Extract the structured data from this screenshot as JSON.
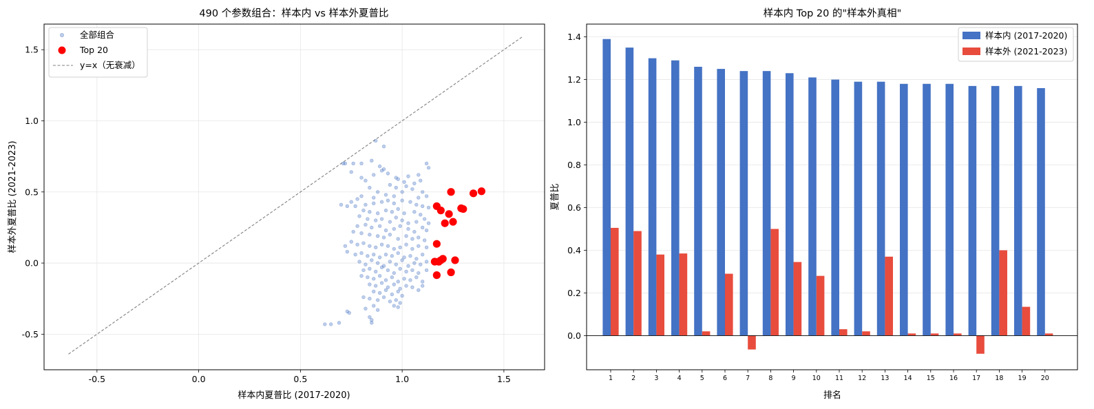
{
  "chart_data": [
    {
      "type": "scatter",
      "title": "490 个参数组合：样本内 vs 样本外夏普比",
      "xlabel": "样本内夏普比 (2017-2020)",
      "ylabel": "样本外夏普比 (2021-2023)",
      "xlim": [
        -0.76,
        1.7
      ],
      "ylim": [
        -0.75,
        1.68
      ],
      "xticks": [
        -0.5,
        0.0,
        0.5,
        1.0,
        1.5
      ],
      "xtick_labels": [
        "-0.5",
        "0.0",
        "0.5",
        "1.0",
        "1.5"
      ],
      "yticks": [
        -0.5,
        0.0,
        0.5,
        1.0,
        1.5
      ],
      "ytick_labels": [
        "-0.5",
        "0.0",
        "0.5",
        "1.0",
        "1.5"
      ],
      "grid": true,
      "legend_position": "top-left",
      "legend": [
        "全部组合",
        "Top 20",
        "y=x（无衰减）"
      ],
      "colors": {
        "all": "#4472C4",
        "top20": "#FF0000",
        "identity": "#808080"
      },
      "reference_line": {
        "name": "y=x（无衰减）",
        "from": [
          -0.64,
          -0.64
        ],
        "to": [
          1.59,
          1.59
        ]
      },
      "series": [
        {
          "name": "全部组合",
          "points": [
            [
              0.87,
              0.86
            ],
            [
              0.91,
              0.82
            ],
            [
              1.12,
              0.7
            ],
            [
              1.13,
              0.67
            ],
            [
              0.71,
              0.7
            ],
            [
              0.72,
              0.7
            ],
            [
              0.76,
              0.7
            ],
            [
              0.8,
              0.7
            ],
            [
              0.9,
              0.65
            ],
            [
              0.85,
              0.72
            ],
            [
              0.91,
              0.66
            ],
            [
              1.08,
              0.62
            ],
            [
              1.03,
              0.61
            ],
            [
              0.98,
              0.59
            ],
            [
              0.94,
              0.55
            ],
            [
              0.86,
              0.62
            ],
            [
              0.75,
              0.64
            ],
            [
              0.8,
              0.6
            ],
            [
              0.82,
              0.58
            ],
            [
              0.84,
              0.53
            ],
            [
              0.8,
              0.47
            ],
            [
              0.88,
              0.5
            ],
            [
              0.92,
              0.48
            ],
            [
              0.97,
              0.53
            ],
            [
              1.0,
              0.5
            ],
            [
              1.02,
              0.54
            ],
            [
              1.05,
              0.52
            ],
            [
              1.1,
              0.5
            ],
            [
              1.12,
              0.47
            ],
            [
              1.08,
              0.46
            ],
            [
              0.78,
              0.45
            ],
            [
              0.75,
              0.43
            ],
            [
              0.7,
              0.41
            ],
            [
              0.73,
              0.4
            ],
            [
              0.77,
              0.4
            ],
            [
              0.82,
              0.41
            ],
            [
              0.86,
              0.42
            ],
            [
              0.9,
              0.43
            ],
            [
              0.93,
              0.44
            ],
            [
              0.96,
              0.42
            ],
            [
              1.0,
              0.44
            ],
            [
              1.04,
              0.43
            ],
            [
              1.07,
              0.41
            ],
            [
              1.1,
              0.4
            ],
            [
              1.13,
              0.39
            ],
            [
              0.81,
              0.37
            ],
            [
              0.84,
              0.36
            ],
            [
              0.88,
              0.35
            ],
            [
              0.92,
              0.37
            ],
            [
              0.95,
              0.36
            ],
            [
              0.98,
              0.38
            ],
            [
              1.01,
              0.35
            ],
            [
              1.06,
              0.36
            ],
            [
              1.09,
              0.34
            ],
            [
              0.79,
              0.33
            ],
            [
              0.83,
              0.31
            ],
            [
              0.87,
              0.3
            ],
            [
              0.9,
              0.31
            ],
            [
              0.94,
              0.29
            ],
            [
              0.97,
              0.32
            ],
            [
              1.0,
              0.3
            ],
            [
              1.03,
              0.28
            ],
            [
              1.07,
              0.29
            ],
            [
              1.11,
              0.31
            ],
            [
              0.82,
              0.27
            ],
            [
              0.85,
              0.25
            ],
            [
              0.89,
              0.26
            ],
            [
              0.92,
              0.23
            ],
            [
              0.96,
              0.24
            ],
            [
              0.99,
              0.26
            ],
            [
              1.03,
              0.24
            ],
            [
              1.06,
              0.22
            ],
            [
              1.1,
              0.25
            ],
            [
              1.12,
              0.23
            ],
            [
              0.76,
              0.22
            ],
            [
              0.8,
              0.21
            ],
            [
              0.84,
              0.2
            ],
            [
              0.88,
              0.19
            ],
            [
              0.91,
              0.18
            ],
            [
              0.94,
              0.2
            ],
            [
              0.98,
              0.17
            ],
            [
              1.02,
              0.19
            ],
            [
              1.05,
              0.17
            ],
            [
              1.08,
              0.18
            ],
            [
              1.11,
              0.16
            ],
            [
              0.72,
              0.12
            ],
            [
              0.75,
              0.15
            ],
            [
              0.78,
              0.13
            ],
            [
              0.81,
              0.14
            ],
            [
              0.84,
              0.12
            ],
            [
              0.87,
              0.11
            ],
            [
              0.9,
              0.13
            ],
            [
              0.93,
              0.12
            ],
            [
              0.96,
              0.1
            ],
            [
              0.99,
              0.11
            ],
            [
              1.02,
              0.13
            ],
            [
              1.05,
              0.1
            ],
            [
              1.08,
              0.12
            ],
            [
              1.12,
              0.11
            ],
            [
              0.73,
              0.08
            ],
            [
              0.77,
              0.06
            ],
            [
              0.8,
              0.07
            ],
            [
              0.83,
              0.05
            ],
            [
              0.86,
              0.06
            ],
            [
              0.89,
              0.04
            ],
            [
              0.92,
              0.06
            ],
            [
              0.95,
              0.05
            ],
            [
              0.98,
              0.07
            ],
            [
              1.01,
              0.04
            ],
            [
              1.04,
              0.05
            ],
            [
              1.07,
              0.03
            ],
            [
              1.1,
              0.06
            ],
            [
              0.79,
              0.01
            ],
            [
              0.82,
              -0.01
            ],
            [
              0.85,
              0.02
            ],
            [
              0.88,
              0.0
            ],
            [
              0.91,
              -0.02
            ],
            [
              0.94,
              0.01
            ],
            [
              0.97,
              -0.01
            ],
            [
              1.0,
              0.02
            ],
            [
              1.03,
              -0.02
            ],
            [
              1.06,
              0.0
            ],
            [
              1.09,
              -0.01
            ],
            [
              1.12,
              0.01
            ],
            [
              0.81,
              -0.05
            ],
            [
              0.84,
              -0.04
            ],
            [
              0.87,
              -0.06
            ],
            [
              0.9,
              -0.03
            ],
            [
              0.93,
              -0.05
            ],
            [
              0.96,
              -0.07
            ],
            [
              0.99,
              -0.04
            ],
            [
              1.02,
              -0.06
            ],
            [
              1.05,
              -0.05
            ],
            [
              1.08,
              -0.07
            ],
            [
              0.8,
              -0.09
            ],
            [
              0.83,
              -0.1
            ],
            [
              0.86,
              -0.11
            ],
            [
              0.89,
              -0.09
            ],
            [
              0.92,
              -0.12
            ],
            [
              0.95,
              -0.1
            ],
            [
              0.98,
              -0.13
            ],
            [
              1.01,
              -0.11
            ],
            [
              1.04,
              -0.12
            ],
            [
              1.07,
              -0.1
            ],
            [
              0.84,
              -0.15
            ],
            [
              0.87,
              -0.16
            ],
            [
              0.9,
              -0.14
            ],
            [
              0.93,
              -0.17
            ],
            [
              0.96,
              -0.15
            ],
            [
              0.99,
              -0.18
            ],
            [
              1.02,
              -0.16
            ],
            [
              1.05,
              -0.17
            ],
            [
              1.08,
              -0.19
            ],
            [
              1.1,
              -0.16
            ],
            [
              0.86,
              -0.2
            ],
            [
              0.89,
              -0.21
            ],
            [
              0.92,
              -0.19
            ],
            [
              0.95,
              -0.22
            ],
            [
              0.98,
              -0.2
            ],
            [
              1.0,
              -0.23
            ],
            [
              0.81,
              -0.24
            ],
            [
              0.84,
              -0.25
            ],
            [
              0.88,
              -0.26
            ],
            [
              0.91,
              -0.24
            ],
            [
              0.94,
              -0.27
            ],
            [
              0.97,
              -0.26
            ],
            [
              0.99,
              -0.28
            ],
            [
              0.96,
              -0.3
            ],
            [
              0.98,
              -0.31
            ],
            [
              0.82,
              -0.32
            ],
            [
              0.86,
              -0.3
            ],
            [
              0.73,
              -0.34
            ],
            [
              0.74,
              -0.35
            ],
            [
              0.84,
              -0.38
            ],
            [
              0.85,
              -0.4
            ],
            [
              0.85,
              -0.42
            ],
            [
              0.69,
              -0.42
            ],
            [
              0.65,
              -0.43
            ],
            [
              0.62,
              -0.43
            ],
            [
              1.06,
              0.56
            ],
            [
              1.09,
              0.58
            ],
            [
              1.01,
              0.57
            ],
            [
              0.97,
              0.6
            ],
            [
              0.93,
              0.63
            ],
            [
              0.89,
              0.68
            ],
            [
              0.96,
              0.47
            ],
            [
              0.86,
              0.46
            ],
            [
              1.13,
              0.28
            ],
            [
              0.78,
              0.26
            ],
            [
              1.12,
              -0.05
            ],
            [
              1.1,
              -0.13
            ],
            [
              0.88,
              -0.33
            ]
          ]
        },
        {
          "name": "Top 20",
          "points": [
            [
              1.39,
              0.505
            ],
            [
              1.35,
              0.49
            ],
            [
              1.3,
              0.38
            ],
            [
              1.29,
              0.385
            ],
            [
              1.26,
              0.02
            ],
            [
              1.25,
              0.29
            ],
            [
              1.24,
              -0.065
            ],
            [
              1.24,
              0.5
            ],
            [
              1.23,
              0.345
            ],
            [
              1.21,
              0.28
            ],
            [
              1.2,
              0.03
            ],
            [
              1.19,
              0.02
            ],
            [
              1.19,
              0.37
            ],
            [
              1.18,
              0.01
            ],
            [
              1.18,
              0.01
            ],
            [
              1.18,
              0.01
            ],
            [
              1.17,
              -0.085
            ],
            [
              1.17,
              0.4
            ],
            [
              1.17,
              0.135
            ],
            [
              1.16,
              0.01
            ]
          ]
        }
      ]
    },
    {
      "type": "bar",
      "title": "样本内 Top 20 的\"样本外真相\"",
      "xlabel": "排名",
      "ylabel": "夏普比",
      "ylim": [
        -0.16,
        1.46
      ],
      "yticks": [
        0.0,
        0.2,
        0.4,
        0.6,
        0.8,
        1.0,
        1.2,
        1.4
      ],
      "ytick_labels": [
        "0.0",
        "0.2",
        "0.4",
        "0.6",
        "0.8",
        "1.0",
        "1.2",
        "1.4"
      ],
      "grid": true,
      "legend_position": "top-right",
      "categories": [
        "1",
        "2",
        "3",
        "4",
        "5",
        "6",
        "7",
        "8",
        "9",
        "10",
        "11",
        "12",
        "13",
        "14",
        "15",
        "16",
        "17",
        "18",
        "19",
        "20"
      ],
      "series": [
        {
          "name": "样本内 (2017-2020)",
          "color": "#4472C4",
          "values": [
            1.39,
            1.35,
            1.3,
            1.29,
            1.26,
            1.25,
            1.24,
            1.24,
            1.23,
            1.21,
            1.2,
            1.19,
            1.19,
            1.18,
            1.18,
            1.18,
            1.17,
            1.17,
            1.17,
            1.16
          ]
        },
        {
          "name": "样本外 (2021-2023)",
          "color": "#E84C3D",
          "values": [
            0.505,
            0.49,
            0.38,
            0.385,
            0.02,
            0.29,
            -0.065,
            0.5,
            0.345,
            0.28,
            0.03,
            0.02,
            0.37,
            0.01,
            0.01,
            0.01,
            -0.085,
            0.4,
            0.135,
            0.01
          ]
        }
      ]
    }
  ]
}
